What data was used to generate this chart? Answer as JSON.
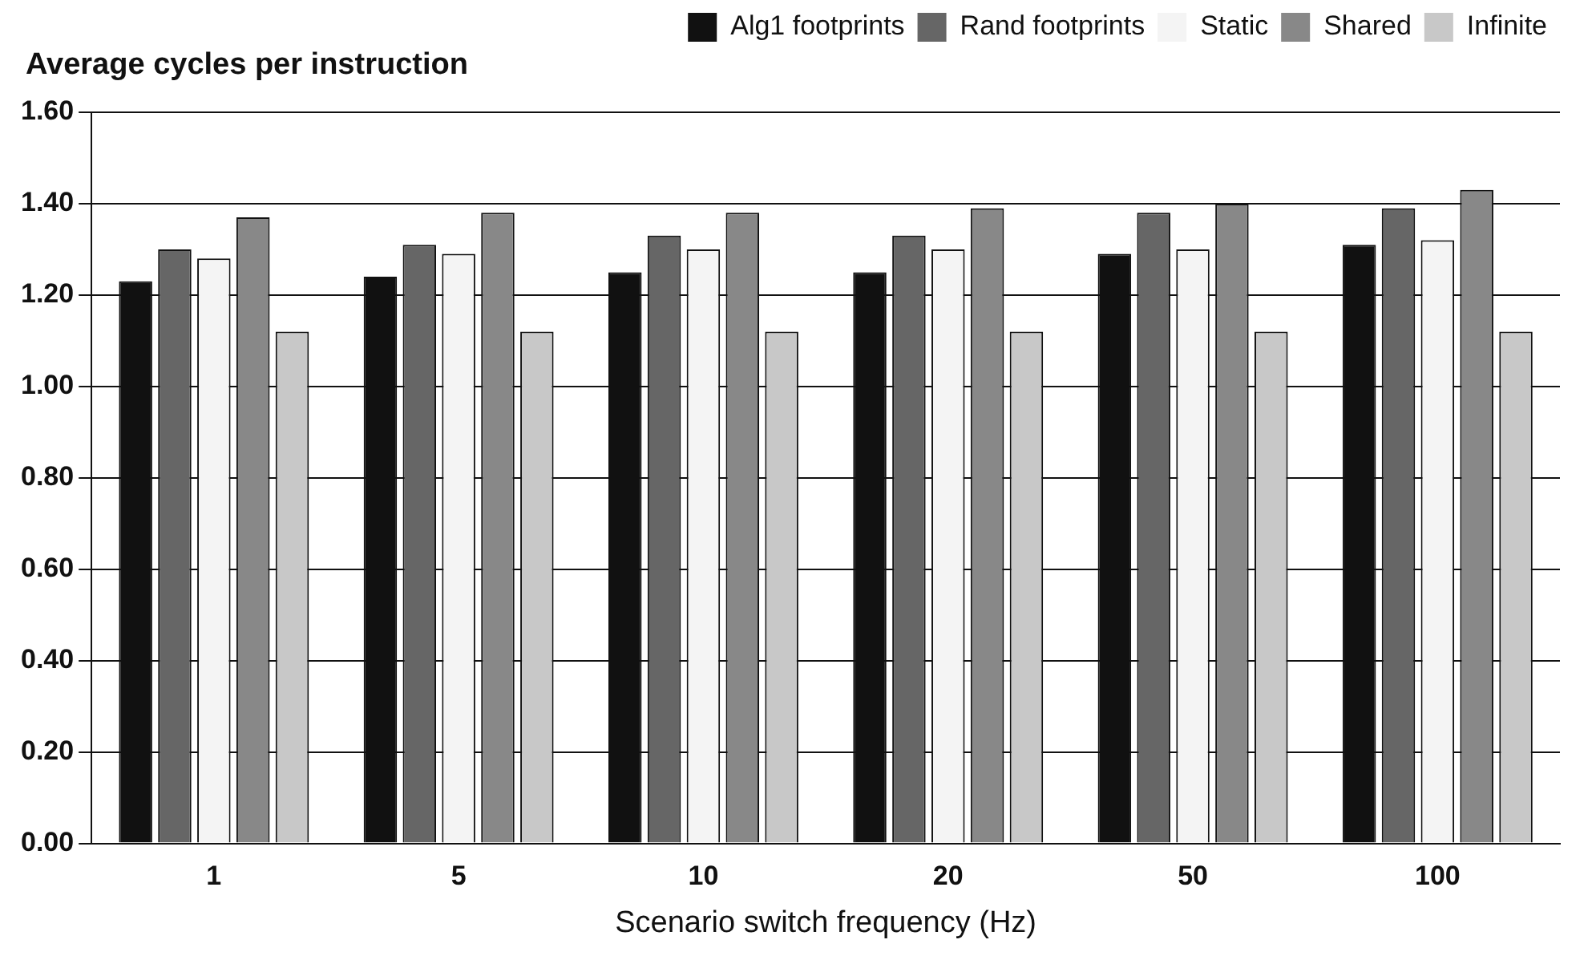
{
  "chart_data": {
    "type": "bar",
    "ylabel": "Average cycles per instruction",
    "xlabel": "Scenario switch frequency (Hz)",
    "categories": [
      "1",
      "5",
      "10",
      "20",
      "50",
      "100"
    ],
    "series": [
      {
        "name": "Alg1 footprints",
        "color": "#111111",
        "values": [
          1.23,
          1.24,
          1.25,
          1.25,
          1.29,
          1.31
        ]
      },
      {
        "name": "Rand footprints",
        "color": "#666666",
        "values": [
          1.3,
          1.31,
          1.33,
          1.33,
          1.38,
          1.39
        ]
      },
      {
        "name": "Static",
        "color": "#f4f4f4",
        "values": [
          1.28,
          1.29,
          1.3,
          1.3,
          1.3,
          1.32
        ]
      },
      {
        "name": "Shared",
        "color": "#888888",
        "values": [
          1.37,
          1.38,
          1.38,
          1.39,
          1.4,
          1.43
        ]
      },
      {
        "name": "Infinite",
        "color": "#c8c8c8",
        "values": [
          1.12,
          1.12,
          1.12,
          1.12,
          1.12,
          1.12
        ]
      }
    ],
    "ylim": [
      0,
      1.6
    ],
    "yticks": [
      {
        "value": 0,
        "label": "0.00"
      },
      {
        "value": 0.2,
        "label": "0.20"
      },
      {
        "value": 0.4,
        "label": "0.40"
      },
      {
        "value": 0.6,
        "label": "0.60"
      },
      {
        "value": 0.8,
        "label": "0.80"
      },
      {
        "value": 1,
        "label": "1.00"
      },
      {
        "value": 1.2,
        "label": "1.20"
      },
      {
        "value": 1.4,
        "label": "1.40"
      },
      {
        "value": 1.6,
        "label": "1.60"
      }
    ],
    "grid": "y",
    "legend": "top right"
  }
}
